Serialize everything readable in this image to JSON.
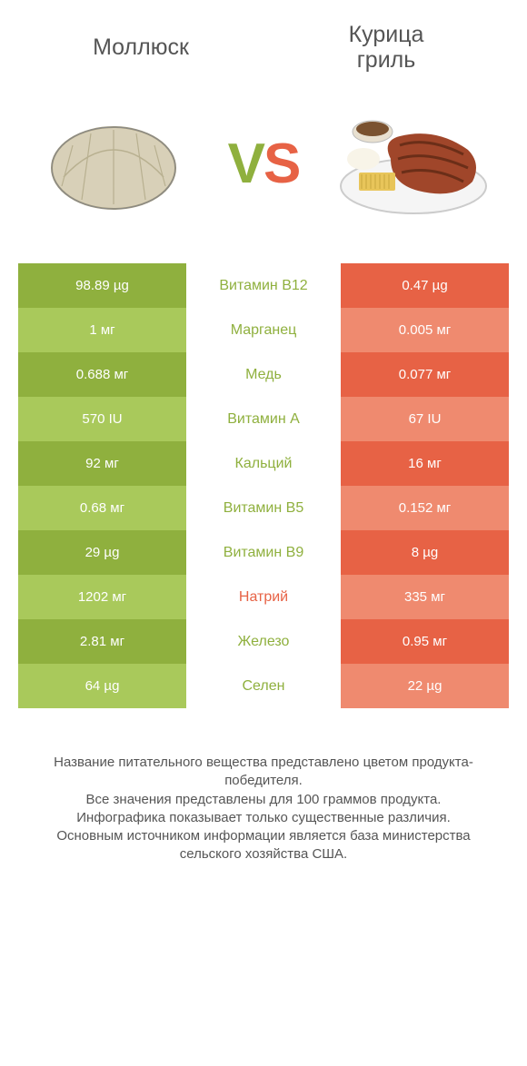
{
  "header": {
    "left_title": "Моллюск",
    "right_title": "Курица\nгриль"
  },
  "vs": {
    "v": "V",
    "s": "S"
  },
  "colors": {
    "green_dark": "#8fb03e",
    "green_light": "#a9c95b",
    "orange_dark": "#e76245",
    "orange_light": "#ef8a6f",
    "mid_bg": "#ffffff",
    "text_gray": "#555555",
    "mid_green": "#8fb03e",
    "mid_orange": "#e76245"
  },
  "rows": [
    {
      "left": "98.89 µg",
      "mid": "Витамин B12",
      "right": "0.47 µg",
      "mid_color": "green",
      "shade": "dark"
    },
    {
      "left": "1 мг",
      "mid": "Марганец",
      "right": "0.005 мг",
      "mid_color": "green",
      "shade": "light"
    },
    {
      "left": "0.688 мг",
      "mid": "Медь",
      "right": "0.077 мг",
      "mid_color": "green",
      "shade": "dark"
    },
    {
      "left": "570 IU",
      "mid": "Витамин A",
      "right": "67 IU",
      "mid_color": "green",
      "shade": "light"
    },
    {
      "left": "92 мг",
      "mid": "Кальций",
      "right": "16 мг",
      "mid_color": "green",
      "shade": "dark"
    },
    {
      "left": "0.68 мг",
      "mid": "Витамин B5",
      "right": "0.152 мг",
      "mid_color": "green",
      "shade": "light"
    },
    {
      "left": "29 µg",
      "mid": "Витамин B9",
      "right": "8 µg",
      "mid_color": "green",
      "shade": "dark"
    },
    {
      "left": "1202 мг",
      "mid": "Натрий",
      "right": "335 мг",
      "mid_color": "orange",
      "shade": "light"
    },
    {
      "left": "2.81 мг",
      "mid": "Железо",
      "right": "0.95 мг",
      "mid_color": "green",
      "shade": "dark"
    },
    {
      "left": "64 µg",
      "mid": "Селен",
      "right": "22 µg",
      "mid_color": "green",
      "shade": "light"
    }
  ],
  "footer": {
    "line1": "Название питательного вещества представлено цветом продукта-победителя.",
    "line2": "Все значения представлены для 100 граммов продукта.",
    "line3": "Инфографика показывает только существенные различия.",
    "line4": "Основным источником информации является база министерства сельского хозяйства США."
  }
}
